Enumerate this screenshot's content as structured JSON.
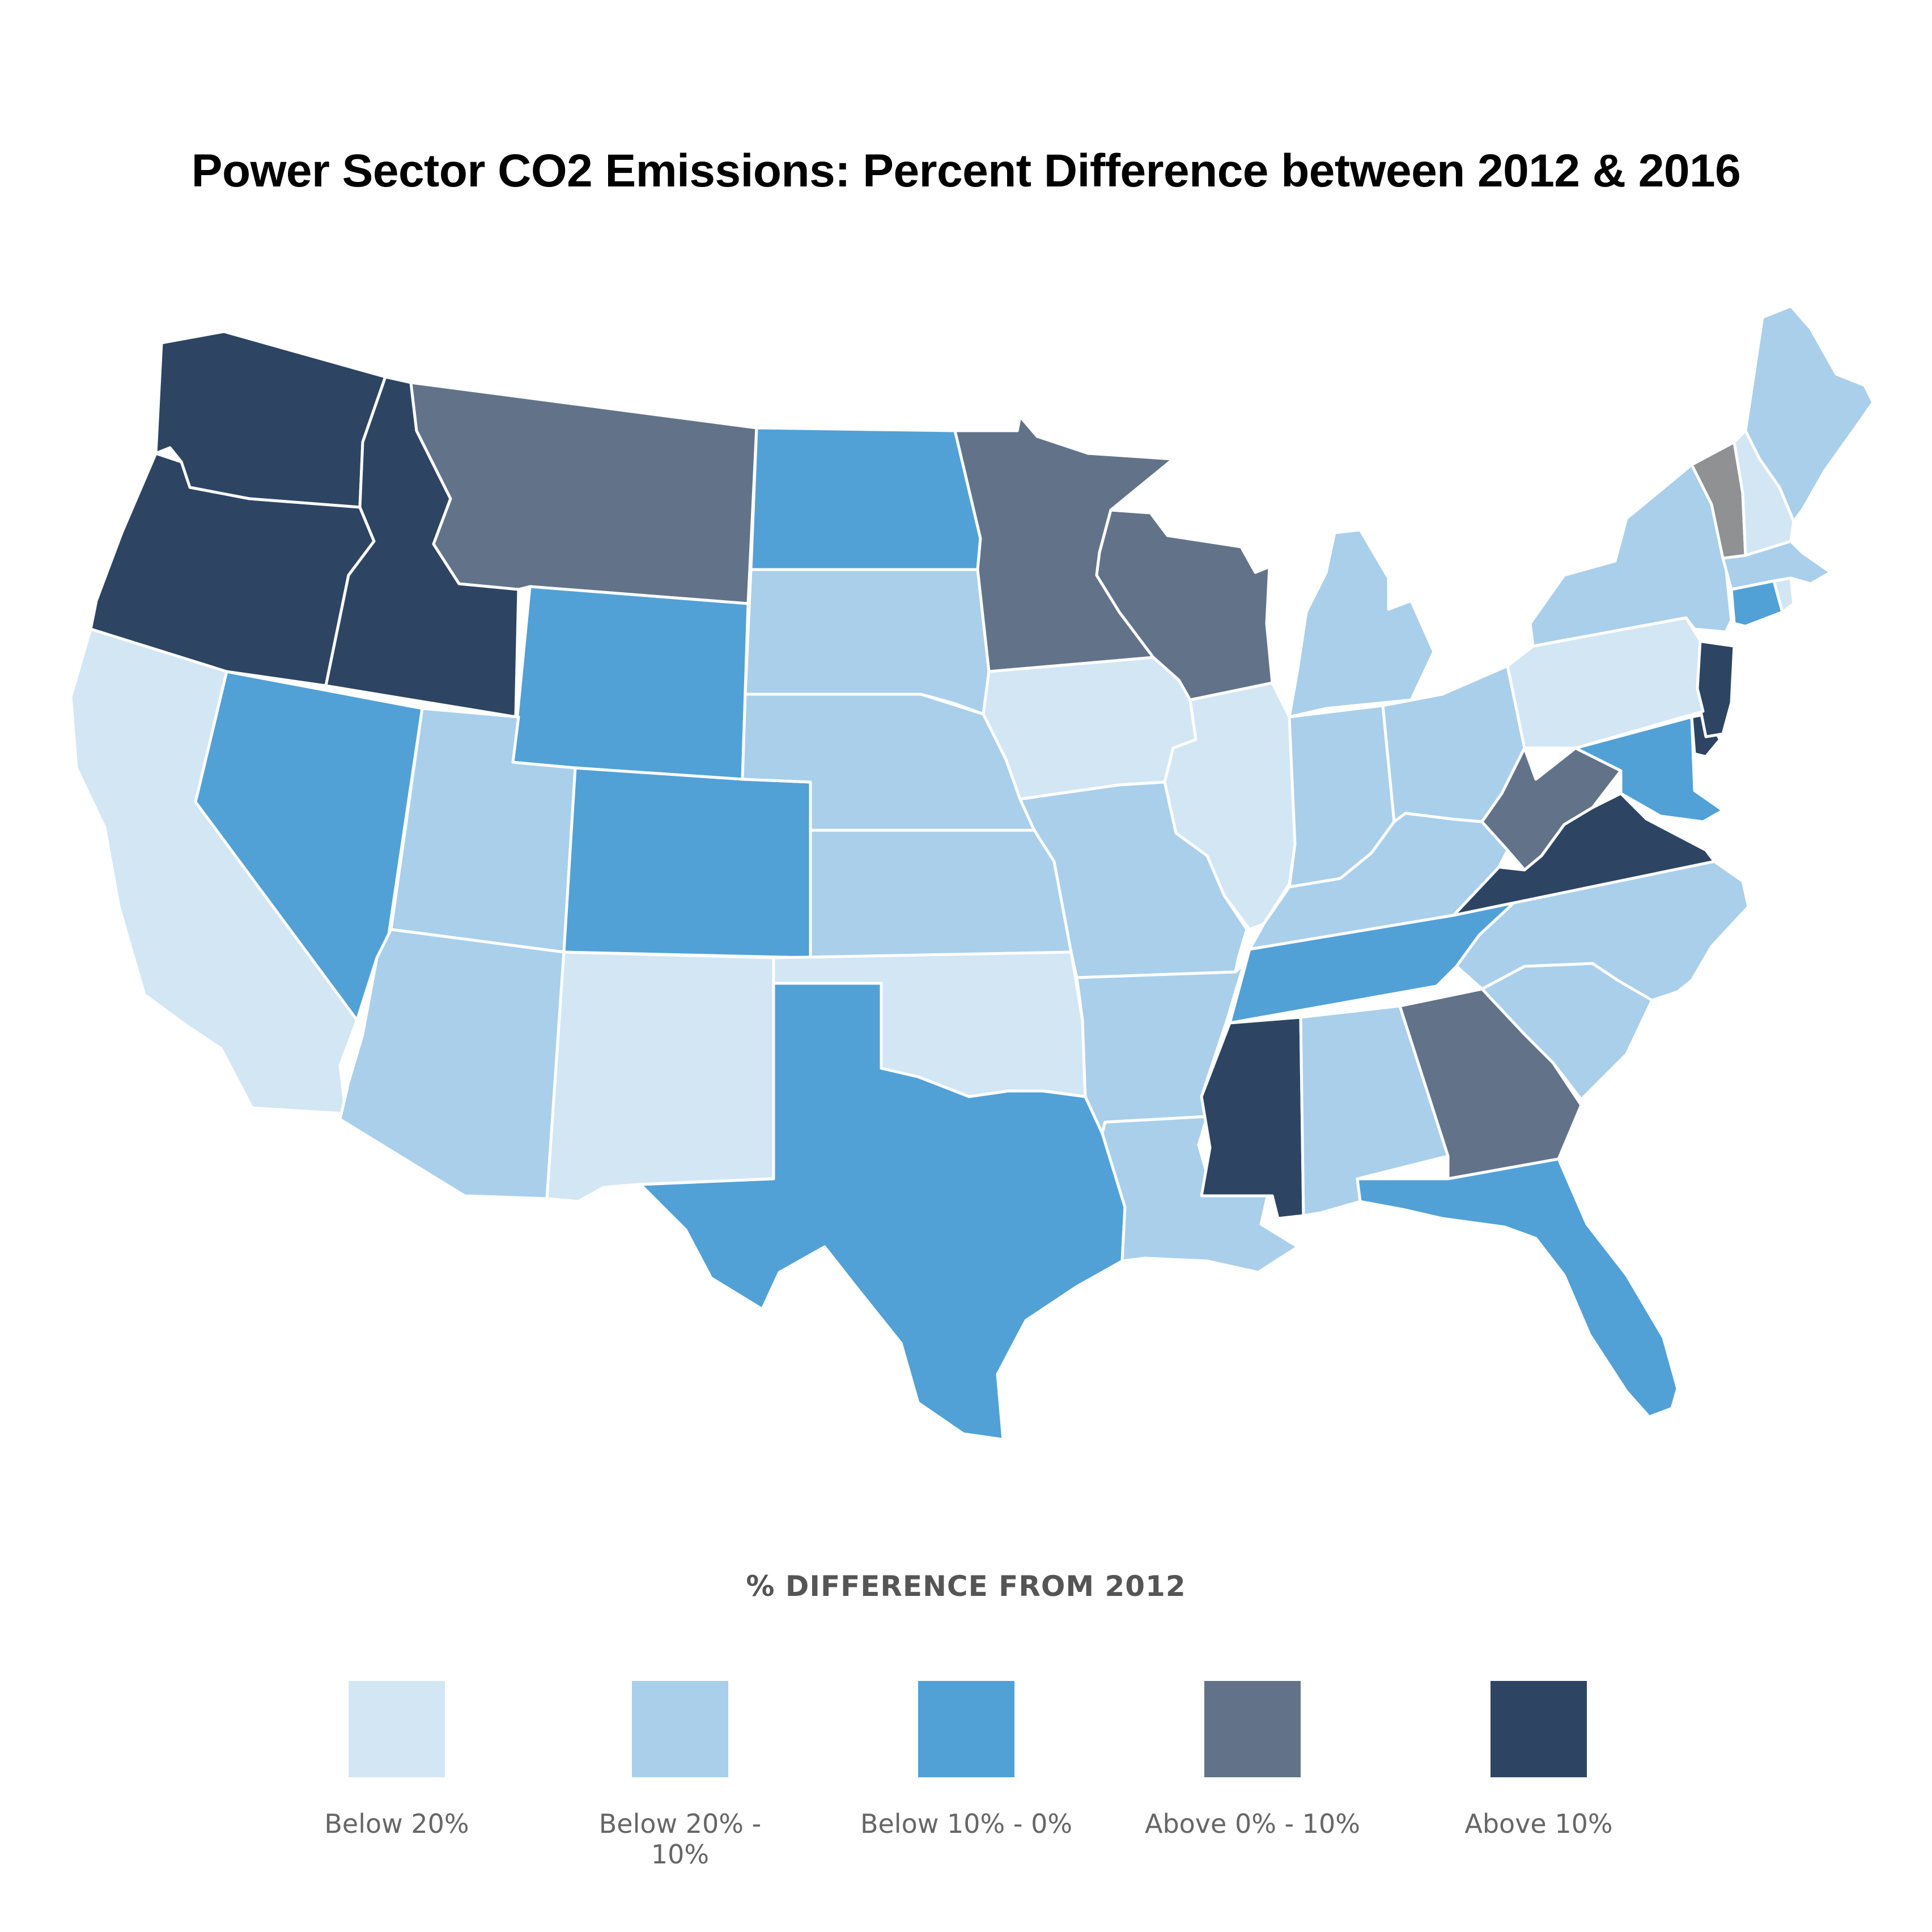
{
  "title": "Power Sector CO2 Emissions: Percent Difference between 2012 & 2016",
  "legend": {
    "title": "% DIFFERENCE FROM 2012",
    "items": [
      {
        "label": "Below 20%",
        "color": "#d3e6f4"
      },
      {
        "label": "Below 20% - 10%",
        "color": "#a9cfeb"
      },
      {
        "label": "Below 10% - 0%",
        "color": "#51a1d7"
      },
      {
        "label": "Above 0% - 10%",
        "color": "#627389"
      },
      {
        "label": "Above 10%",
        "color": "#2d4563"
      }
    ]
  },
  "no_data_color": "#8f9193",
  "states": {
    "WA": "Above 10%",
    "OR": "Above 10%",
    "ID": "Above 10%",
    "MS": "Above 10%",
    "VA": "Above 10%",
    "DE": "Above 10%",
    "NJ": "Above 10%",
    "MT": "Above 0% - 10%",
    "MN": "Above 0% - 10%",
    "WI": "Above 0% - 10%",
    "GA": "Above 0% - 10%",
    "WV": "Above 0% - 10%",
    "ND": "Below 10% - 0%",
    "WY": "Below 10% - 0%",
    "CO": "Below 10% - 0%",
    "NV": "Below 10% - 0%",
    "TX": "Below 10% - 0%",
    "TN": "Below 10% - 0%",
    "FL": "Below 10% - 0%",
    "MD": "Below 10% - 0%",
    "CT": "Below 10% - 0%",
    "UT": "Below 20% - 10%",
    "AZ": "Below 20% - 10%",
    "SD": "Below 20% - 10%",
    "NE": "Below 20% - 10%",
    "KS": "Below 20% - 10%",
    "MO": "Below 20% - 10%",
    "AR": "Below 20% - 10%",
    "LA": "Below 20% - 10%",
    "AL": "Below 20% - 10%",
    "SC": "Below 20% - 10%",
    "NC": "Below 20% - 10%",
    "KY": "Below 20% - 10%",
    "IN": "Below 20% - 10%",
    "OH": "Below 20% - 10%",
    "MI": "Below 20% - 10%",
    "NY": "Below 20% - 10%",
    "ME": "Below 20% - 10%",
    "MA": "Below 20% - 10%",
    "CA": "Below 20%",
    "NM": "Below 20%",
    "OK": "Below 20%",
    "IA": "Below 20%",
    "IL": "Below 20%",
    "PA": "Below 20%",
    "NH": "Below 20%",
    "RI": "Below 20%",
    "VT": "no data"
  }
}
